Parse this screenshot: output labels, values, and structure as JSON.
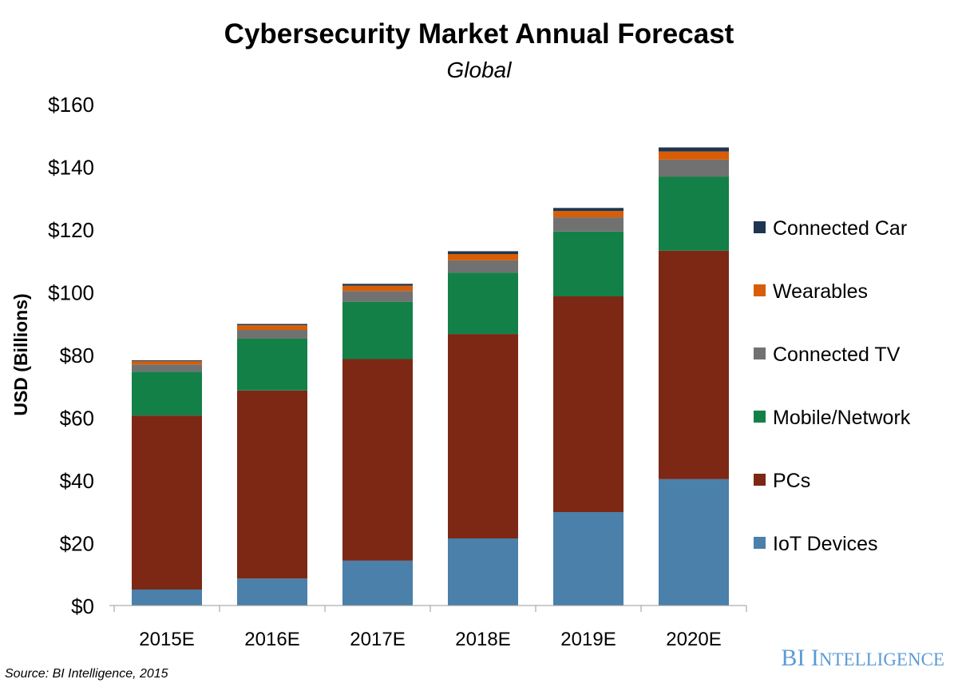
{
  "chart_data": {
    "type": "bar",
    "stacked": true,
    "title": "Cybersecurity Market Annual Forecast",
    "subtitle": "Global",
    "xlabel": "",
    "ylabel": "USD (Billions)",
    "ylim": [
      0,
      160
    ],
    "yticks": [
      "$0",
      "$20",
      "$40",
      "$60",
      "$80",
      "$100",
      "$120",
      "$140",
      "$160"
    ],
    "ytick_values": [
      0,
      20,
      40,
      60,
      80,
      100,
      120,
      140,
      160
    ],
    "grid": false,
    "legend_position": "right",
    "categories": [
      "2015E",
      "2016E",
      "2017E",
      "2018E",
      "2019E",
      "2020E"
    ],
    "series": [
      {
        "name": "IoT Devices",
        "color": "#4a80aa",
        "values": [
          5.1,
          8.6,
          14.3,
          21.4,
          29.8,
          40.3
        ]
      },
      {
        "name": "PCs",
        "color": "#7c2815",
        "values": [
          55.5,
          60.0,
          64.3,
          65.2,
          68.8,
          72.9
        ]
      },
      {
        "name": "Mobile/Network",
        "color": "#138048",
        "values": [
          14.0,
          16.5,
          18.3,
          19.6,
          20.7,
          23.6
        ]
      },
      {
        "name": "Connected TV",
        "color": "#717171",
        "values": [
          2.3,
          2.8,
          3.4,
          3.9,
          4.5,
          5.4
        ]
      },
      {
        "name": "Wearables",
        "color": "#d75e06",
        "values": [
          1.0,
          1.5,
          1.7,
          2.0,
          2.0,
          2.6
        ]
      },
      {
        "name": "Connected Car",
        "color": "#1f3550",
        "values": [
          0.3,
          0.4,
          0.6,
          0.9,
          1.0,
          1.3
        ]
      }
    ],
    "source": "Source: BI Intelligence, 2015",
    "logo": "BI INTELLIGENCE"
  }
}
